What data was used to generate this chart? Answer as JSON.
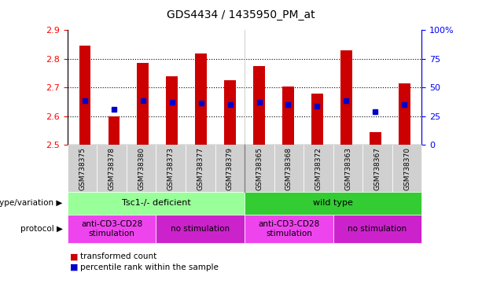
{
  "title": "GDS4434 / 1435950_PM_at",
  "samples": [
    "GSM738375",
    "GSM738378",
    "GSM738380",
    "GSM738373",
    "GSM738377",
    "GSM738379",
    "GSM738365",
    "GSM738368",
    "GSM738372",
    "GSM738363",
    "GSM738367",
    "GSM738370"
  ],
  "bar_values": [
    2.845,
    2.6,
    2.785,
    2.74,
    2.82,
    2.725,
    2.775,
    2.705,
    2.68,
    2.83,
    2.545,
    2.715
  ],
  "percentile_values": [
    2.655,
    2.625,
    2.655,
    2.65,
    2.645,
    2.64,
    2.65,
    2.64,
    2.635,
    2.655,
    2.615,
    2.64
  ],
  "ylim_left": [
    2.5,
    2.9
  ],
  "ylim_right": [
    0,
    100
  ],
  "bar_color": "#cc0000",
  "percentile_color": "#0000cc",
  "bar_bottom": 2.5,
  "grid_values": [
    2.6,
    2.7,
    2.8
  ],
  "yticks_left": [
    2.5,
    2.6,
    2.7,
    2.8,
    2.9
  ],
  "yticks_right": [
    0,
    25,
    50,
    75,
    100
  ],
  "ytick_labels_right": [
    "0",
    "25",
    "50",
    "75",
    "100%"
  ],
  "genotype_groups": [
    {
      "label": "Tsc1-/- deficient",
      "start": 0,
      "end": 6,
      "color": "#99ff99"
    },
    {
      "label": "wild type",
      "start": 6,
      "end": 12,
      "color": "#33cc33"
    }
  ],
  "protocol_groups": [
    {
      "label": "anti-CD3-CD28\nstimulation",
      "start": 0,
      "end": 3,
      "color": "#ee44ee"
    },
    {
      "label": "no stimulation",
      "start": 3,
      "end": 6,
      "color": "#cc22cc"
    },
    {
      "label": "anti-CD3-CD28\nstimulation",
      "start": 6,
      "end": 9,
      "color": "#ee44ee"
    },
    {
      "label": "no stimulation",
      "start": 9,
      "end": 12,
      "color": "#cc22cc"
    }
  ],
  "legend_bar_label": "transformed count",
  "legend_pct_label": "percentile rank within the sample",
  "genotype_label": "genotype/variation",
  "protocol_label": "protocol",
  "xtick_bg": "#d0d0d0",
  "separator_positions": [
    5.5
  ],
  "bar_width": 0.4
}
